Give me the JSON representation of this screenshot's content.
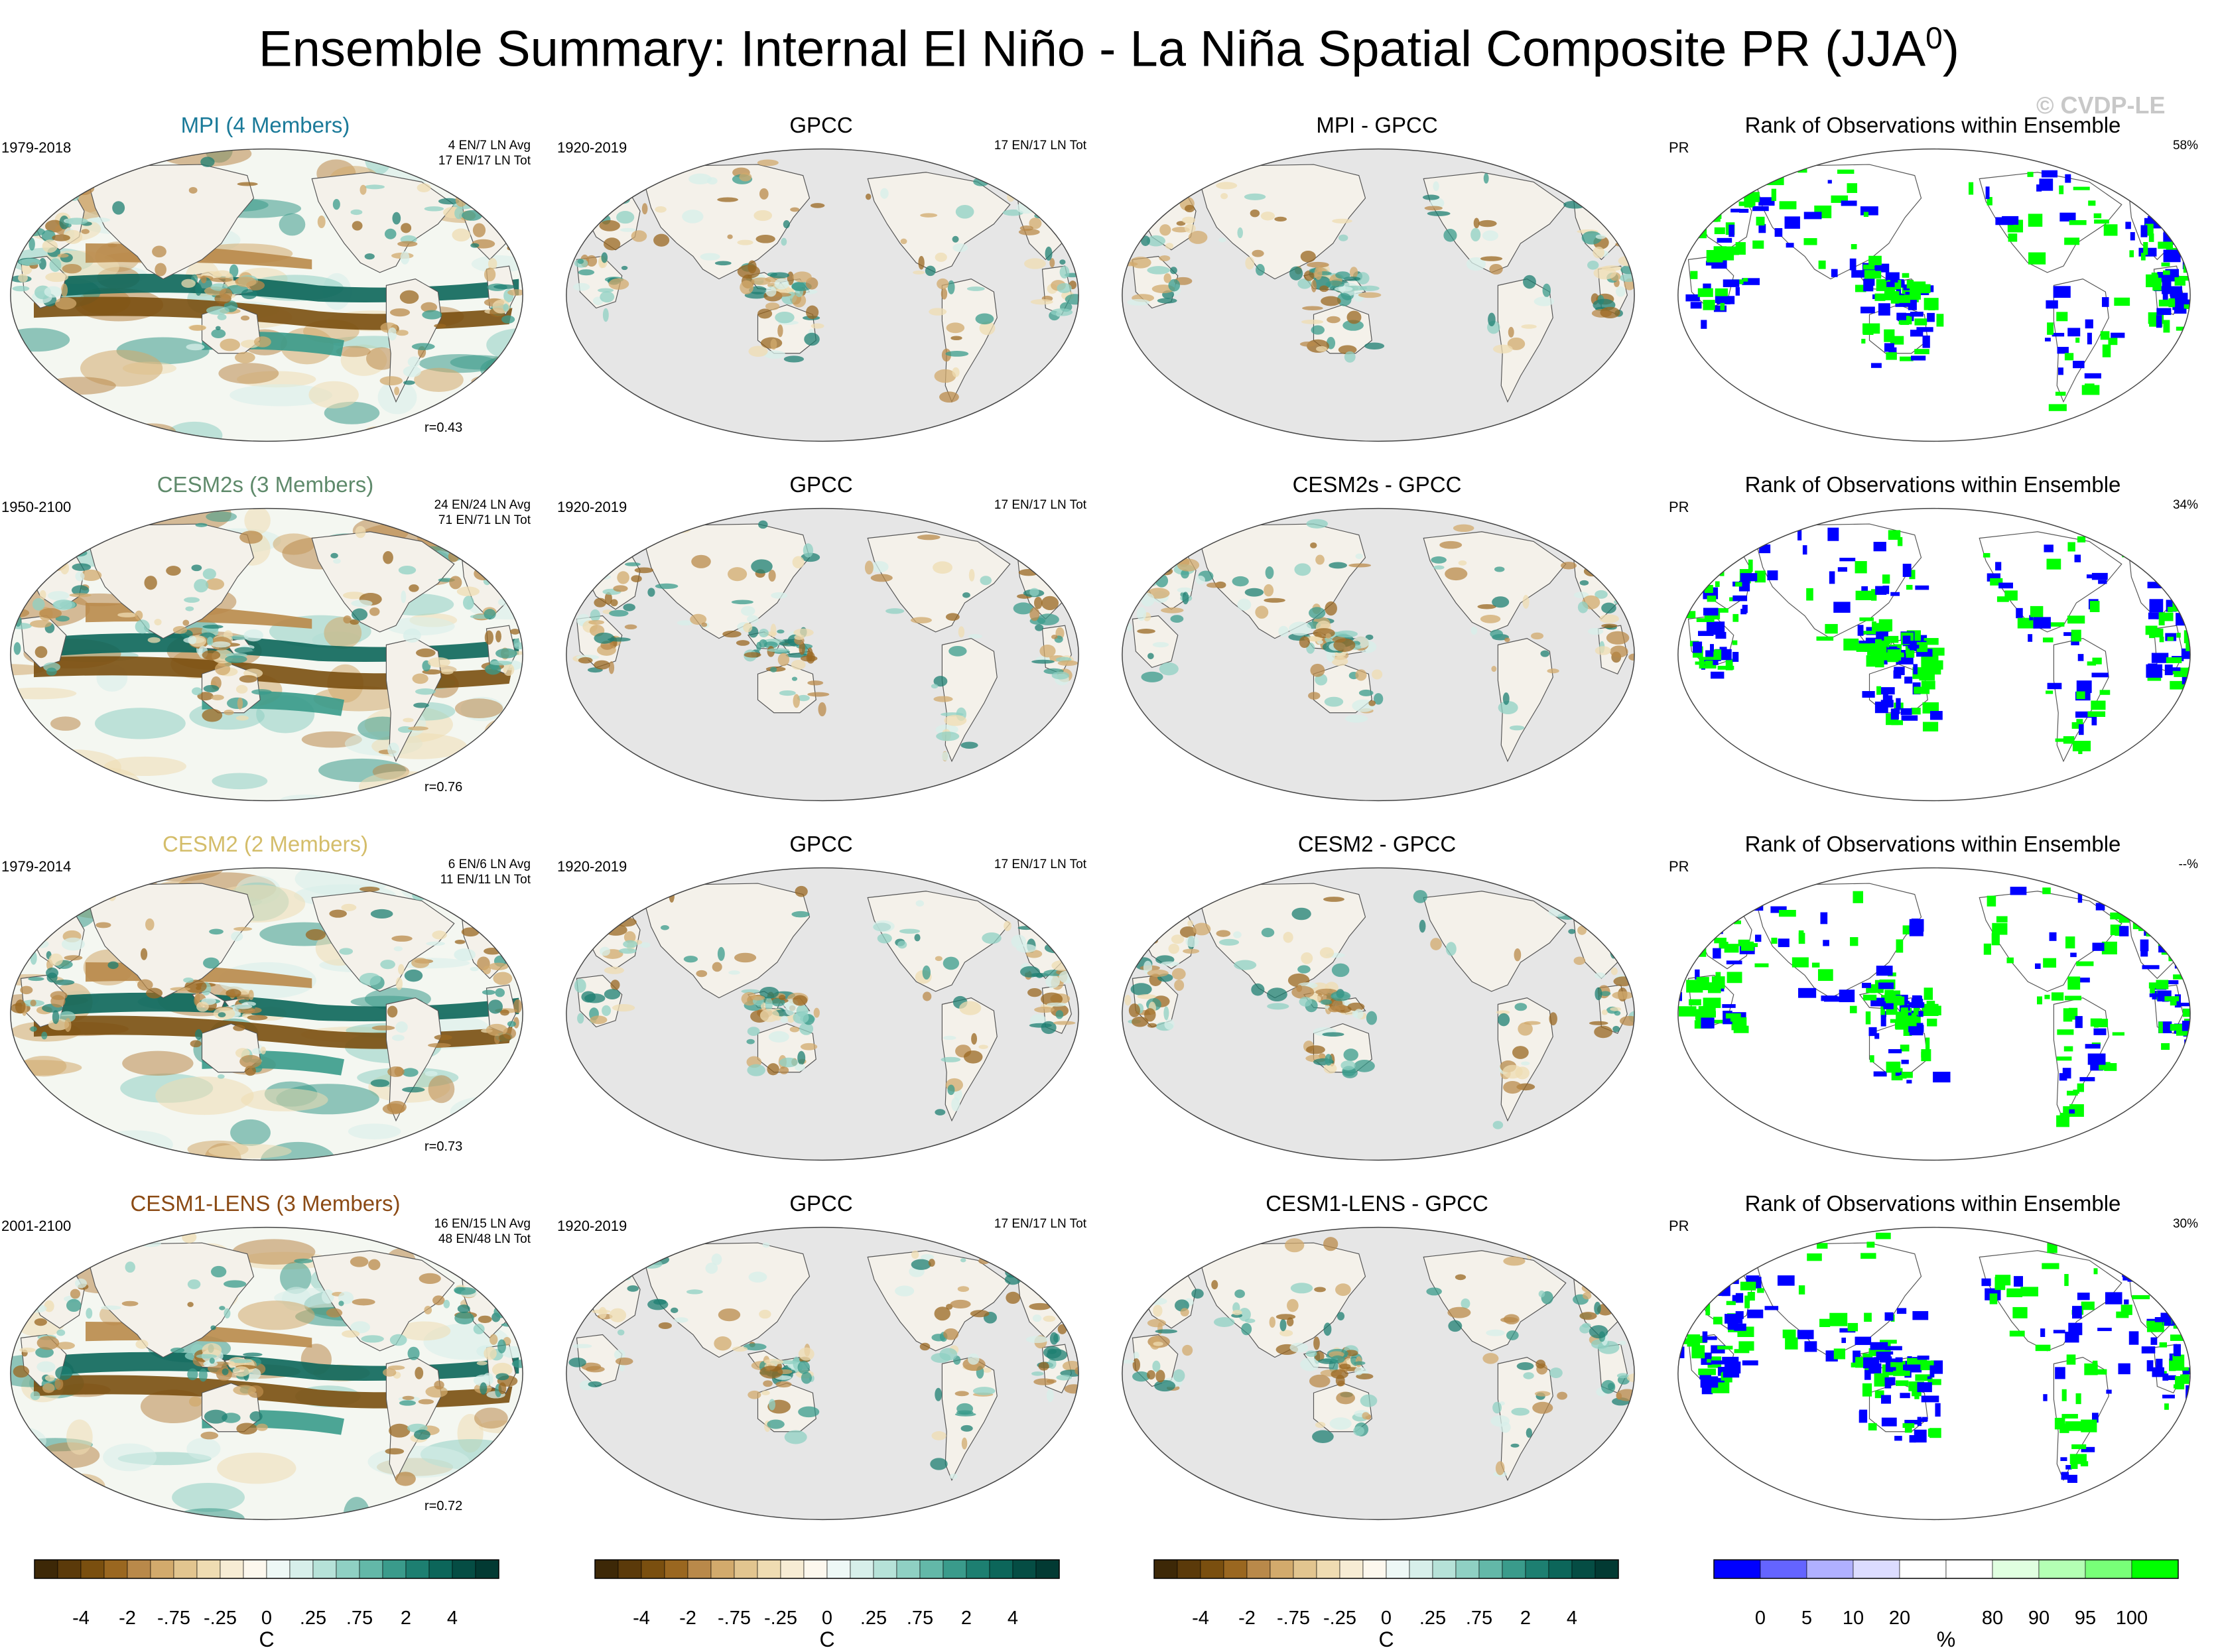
{
  "title": {
    "main": "Ensemble Summary: Internal El Niño - La Niña Spatial Composite PR (JJA",
    "sup": "0",
    "close": ")"
  },
  "copyright": "© CVDP-LE",
  "rows": [
    {
      "model": {
        "title": "MPI (4 Members)",
        "color": "#1a7a99",
        "years": "1979-2018",
        "avg": "4 EN/7 LN Avg",
        "tot": "17 EN/17 LN Tot",
        "corr": "r=0.43"
      },
      "obs": {
        "title": "GPCC",
        "years": "1920-2019",
        "tot": "17 EN/17 LN Tot"
      },
      "diff": {
        "title": "MPI - GPCC"
      },
      "rank": {
        "title": "Rank of Observations within Ensemble",
        "var": "PR",
        "pct": "58%"
      }
    },
    {
      "model": {
        "title": "CESM2s (3 Members)",
        "color": "#5f8a6b",
        "years": "1950-2100",
        "avg": "24 EN/24 LN Avg",
        "tot": "71 EN/71 LN Tot",
        "corr": "r=0.76"
      },
      "obs": {
        "title": "GPCC",
        "years": "1920-2019",
        "tot": "17 EN/17 LN Tot"
      },
      "diff": {
        "title": "CESM2s - GPCC"
      },
      "rank": {
        "title": "Rank of Observations within Ensemble",
        "var": "PR",
        "pct": "34%"
      }
    },
    {
      "model": {
        "title": "CESM2 (2 Members)",
        "color": "#d4bd6a",
        "years": "1979-2014",
        "avg": "6 EN/6 LN Avg",
        "tot": "11 EN/11 LN Tot",
        "corr": "r=0.73"
      },
      "obs": {
        "title": "GPCC",
        "years": "1920-2019",
        "tot": "17 EN/17 LN Tot"
      },
      "diff": {
        "title": "CESM2 - GPCC"
      },
      "rank": {
        "title": "Rank of Observations within Ensemble",
        "var": "PR",
        "pct": "--%"
      }
    },
    {
      "model": {
        "title": "CESM1-LENS (3 Members)",
        "color": "#8b4a14",
        "years": "2001-2100",
        "avg": "16 EN/15 LN Avg",
        "tot": "48 EN/48 LN Tot",
        "corr": "r=0.72"
      },
      "obs": {
        "title": "GPCC",
        "years": "1920-2019",
        "tot": "17 EN/17 LN Tot"
      },
      "diff": {
        "title": "CESM1-LENS - GPCC"
      },
      "rank": {
        "title": "Rank of Observations within Ensemble",
        "var": "PR",
        "pct": "30%"
      }
    }
  ],
  "colorbars": {
    "diverging": {
      "colors": [
        "#3d2807",
        "#5b3a0a",
        "#7a4f0f",
        "#9a6720",
        "#b9894a",
        "#d2aa6c",
        "#e2c58f",
        "#efdcb2",
        "#f7ecd4",
        "#fdf8ee",
        "#eef8f6",
        "#d7efea",
        "#b6e2d8",
        "#8fd0c3",
        "#63b8a8",
        "#3a9b8b",
        "#1d7f71",
        "#0c665a",
        "#054d44",
        "#023a33"
      ],
      "labels": [
        "-4",
        "-2",
        "-.75",
        "-.25",
        "0",
        ".25",
        ".75",
        "2",
        "4"
      ],
      "unit": "C"
    },
    "rank": {
      "colors": [
        "#0000ff",
        "#6464ff",
        "#b0b0ff",
        "#dcdcff",
        "#ffffff",
        "#ffffff",
        "#e0ffe0",
        "#b4ffb4",
        "#78ff78",
        "#00ff00"
      ],
      "labels": [
        "0",
        "5",
        "10",
        "20",
        "80",
        "90",
        "95",
        "100"
      ],
      "unit": "%"
    }
  }
}
